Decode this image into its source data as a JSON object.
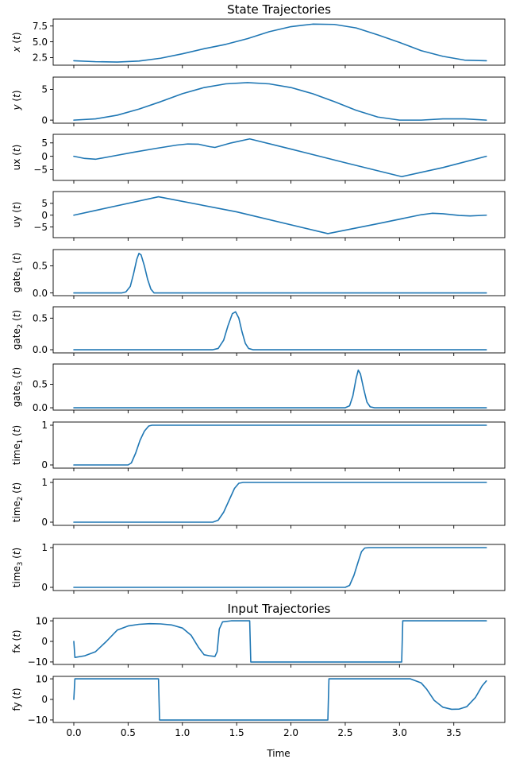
{
  "chart_data": {
    "type": "line",
    "line_color": "#1f77b4",
    "grid": false,
    "xlabel": "Time",
    "xlim": [
      -0.19,
      3.97
    ],
    "xticks": [
      0.0,
      0.5,
      1.0,
      1.5,
      2.0,
      2.5,
      3.0,
      3.5
    ],
    "xtick_labels": [
      "0.0",
      "0.5",
      "1.0",
      "1.5",
      "2.0",
      "2.5",
      "3.0",
      "3.5"
    ],
    "panels": [
      {
        "key": "x",
        "title": "State Trajectories",
        "ylabel_main": "x",
        "ylabel_sub": "",
        "ylabel_suffix": "(t)",
        "ylabel_italic": true,
        "ylim": [
          1.3,
          8.6
        ],
        "yticks": [
          2.5,
          5.0,
          7.5
        ],
        "ytick_labels": [
          "2.5",
          "5.0",
          "7.5"
        ],
        "points": [
          [
            0.0,
            2.0
          ],
          [
            0.2,
            1.85
          ],
          [
            0.4,
            1.8
          ],
          [
            0.6,
            1.95
          ],
          [
            0.8,
            2.4
          ],
          [
            1.0,
            3.1
          ],
          [
            1.2,
            3.9
          ],
          [
            1.4,
            4.6
          ],
          [
            1.6,
            5.5
          ],
          [
            1.8,
            6.6
          ],
          [
            2.0,
            7.4
          ],
          [
            2.2,
            7.8
          ],
          [
            2.4,
            7.75
          ],
          [
            2.6,
            7.2
          ],
          [
            2.8,
            6.1
          ],
          [
            3.0,
            4.9
          ],
          [
            3.2,
            3.6
          ],
          [
            3.4,
            2.7
          ],
          [
            3.6,
            2.1
          ],
          [
            3.8,
            2.0
          ]
        ]
      },
      {
        "key": "y",
        "title": "",
        "ylabel_main": "y",
        "ylabel_sub": "",
        "ylabel_suffix": "(t)",
        "ylabel_italic": true,
        "ylim": [
          -0.5,
          7.0
        ],
        "yticks": [
          0,
          5
        ],
        "ytick_labels": [
          "0",
          "5"
        ],
        "points": [
          [
            0.0,
            0.0
          ],
          [
            0.2,
            0.2
          ],
          [
            0.4,
            0.8
          ],
          [
            0.6,
            1.8
          ],
          [
            0.8,
            3.0
          ],
          [
            1.0,
            4.3
          ],
          [
            1.2,
            5.3
          ],
          [
            1.4,
            5.9
          ],
          [
            1.6,
            6.1
          ],
          [
            1.8,
            5.9
          ],
          [
            2.0,
            5.3
          ],
          [
            2.2,
            4.3
          ],
          [
            2.4,
            3.0
          ],
          [
            2.6,
            1.6
          ],
          [
            2.8,
            0.5
          ],
          [
            3.0,
            0.0
          ],
          [
            3.2,
            0.0
          ],
          [
            3.4,
            0.2
          ],
          [
            3.6,
            0.2
          ],
          [
            3.8,
            0.0
          ]
        ]
      },
      {
        "key": "ux",
        "title": "",
        "ylabel_main": "ux",
        "ylabel_sub": "",
        "ylabel_suffix": "(t)",
        "ylabel_italic": false,
        "ylim": [
          -9.0,
          8.2
        ],
        "yticks": [
          -5,
          0,
          5
        ],
        "ytick_labels": [
          "−5",
          "0",
          "5"
        ],
        "points": [
          [
            0.0,
            0.0
          ],
          [
            0.1,
            -0.8
          ],
          [
            0.2,
            -1.1
          ],
          [
            0.35,
            0.0
          ],
          [
            0.55,
            1.5
          ],
          [
            0.75,
            2.9
          ],
          [
            0.95,
            4.2
          ],
          [
            1.05,
            4.6
          ],
          [
            1.15,
            4.5
          ],
          [
            1.25,
            3.6
          ],
          [
            1.3,
            3.3
          ],
          [
            1.45,
            5.0
          ],
          [
            1.62,
            6.5
          ],
          [
            2.0,
            2.7
          ],
          [
            2.5,
            -2.4
          ],
          [
            3.02,
            -7.6
          ],
          [
            3.4,
            -4.2
          ],
          [
            3.8,
            0.0
          ]
        ]
      },
      {
        "key": "uy",
        "title": "",
        "ylabel_main": "uy",
        "ylabel_sub": "",
        "ylabel_suffix": "(t)",
        "ylabel_italic": false,
        "ylim": [
          -9.5,
          10.0
        ],
        "yticks": [
          -5,
          0,
          5
        ],
        "ytick_labels": [
          "−5",
          "0",
          "5"
        ],
        "points": [
          [
            0.0,
            0.0
          ],
          [
            0.78,
            7.8
          ],
          [
            1.5,
            1.4
          ],
          [
            2.34,
            -7.8
          ],
          [
            2.8,
            -3.6
          ],
          [
            3.2,
            0.2
          ],
          [
            3.3,
            0.8
          ],
          [
            3.4,
            0.6
          ],
          [
            3.55,
            -0.1
          ],
          [
            3.65,
            -0.3
          ],
          [
            3.8,
            0.0
          ]
        ]
      },
      {
        "key": "gate1",
        "title": "",
        "ylabel_main": "gate",
        "ylabel_sub": "1",
        "ylabel_suffix": "(t)",
        "ylabel_italic": false,
        "ylim": [
          -0.05,
          0.8
        ],
        "yticks": [
          0.0,
          0.5
        ],
        "ytick_labels": [
          "0.0",
          "0.5"
        ],
        "points": [
          [
            0.0,
            0.0
          ],
          [
            0.44,
            0.0
          ],
          [
            0.48,
            0.02
          ],
          [
            0.52,
            0.12
          ],
          [
            0.55,
            0.35
          ],
          [
            0.58,
            0.62
          ],
          [
            0.6,
            0.73
          ],
          [
            0.62,
            0.7
          ],
          [
            0.65,
            0.5
          ],
          [
            0.68,
            0.25
          ],
          [
            0.71,
            0.07
          ],
          [
            0.74,
            0.0
          ],
          [
            3.8,
            0.0
          ]
        ]
      },
      {
        "key": "gate2",
        "title": "",
        "ylabel_main": "gate",
        "ylabel_sub": "2",
        "ylabel_suffix": "(t)",
        "ylabel_italic": false,
        "ylim": [
          -0.05,
          0.68
        ],
        "yticks": [
          0.0,
          0.5
        ],
        "ytick_labels": [
          "0.0",
          "0.5"
        ],
        "points": [
          [
            0.0,
            0.0
          ],
          [
            1.28,
            0.0
          ],
          [
            1.33,
            0.02
          ],
          [
            1.38,
            0.15
          ],
          [
            1.42,
            0.38
          ],
          [
            1.46,
            0.57
          ],
          [
            1.49,
            0.6
          ],
          [
            1.52,
            0.5
          ],
          [
            1.55,
            0.28
          ],
          [
            1.58,
            0.1
          ],
          [
            1.61,
            0.02
          ],
          [
            1.65,
            0.0
          ],
          [
            3.8,
            0.0
          ]
        ]
      },
      {
        "key": "gate3",
        "title": "",
        "ylabel_main": "gate",
        "ylabel_sub": "3",
        "ylabel_suffix": "(t)",
        "ylabel_italic": false,
        "ylim": [
          -0.05,
          0.93
        ],
        "yticks": [
          0.0,
          0.5
        ],
        "ytick_labels": [
          "0.0",
          "0.5"
        ],
        "points": [
          [
            0.0,
            0.0
          ],
          [
            2.5,
            0.0
          ],
          [
            2.54,
            0.04
          ],
          [
            2.57,
            0.25
          ],
          [
            2.6,
            0.62
          ],
          [
            2.62,
            0.8
          ],
          [
            2.64,
            0.72
          ],
          [
            2.67,
            0.4
          ],
          [
            2.7,
            0.12
          ],
          [
            2.73,
            0.02
          ],
          [
            2.77,
            0.0
          ],
          [
            3.8,
            0.0
          ]
        ]
      },
      {
        "key": "time1",
        "title": "",
        "ylabel_main": "time",
        "ylabel_sub": "1",
        "ylabel_suffix": "(t)",
        "ylabel_italic": false,
        "ylim": [
          -0.08,
          1.08
        ],
        "yticks": [
          0,
          1
        ],
        "ytick_labels": [
          "0",
          "1"
        ],
        "points": [
          [
            0.0,
            0.0
          ],
          [
            0.5,
            0.0
          ],
          [
            0.53,
            0.05
          ],
          [
            0.57,
            0.3
          ],
          [
            0.61,
            0.62
          ],
          [
            0.65,
            0.85
          ],
          [
            0.69,
            0.98
          ],
          [
            0.72,
            1.0
          ],
          [
            3.8,
            1.0
          ]
        ]
      },
      {
        "key": "time2",
        "title": "",
        "ylabel_main": "time",
        "ylabel_sub": "2",
        "ylabel_suffix": "(t)",
        "ylabel_italic": false,
        "ylim": [
          -0.08,
          1.08
        ],
        "yticks": [
          0,
          1
        ],
        "ytick_labels": [
          "0",
          "1"
        ],
        "points": [
          [
            0.0,
            0.0
          ],
          [
            1.28,
            0.0
          ],
          [
            1.33,
            0.05
          ],
          [
            1.38,
            0.25
          ],
          [
            1.43,
            0.55
          ],
          [
            1.48,
            0.85
          ],
          [
            1.52,
            0.98
          ],
          [
            1.56,
            1.0
          ],
          [
            3.8,
            1.0
          ]
        ]
      },
      {
        "key": "time3",
        "title": "",
        "ylabel_main": "time",
        "ylabel_sub": "3",
        "ylabel_suffix": "(t)",
        "ylabel_italic": false,
        "ylim": [
          -0.08,
          1.08
        ],
        "yticks": [
          0,
          1
        ],
        "ytick_labels": [
          "0",
          "1"
        ],
        "points": [
          [
            0.0,
            0.0
          ],
          [
            2.5,
            0.0
          ],
          [
            2.54,
            0.05
          ],
          [
            2.58,
            0.3
          ],
          [
            2.62,
            0.65
          ],
          [
            2.65,
            0.9
          ],
          [
            2.68,
            0.99
          ],
          [
            2.72,
            1.0
          ],
          [
            3.8,
            1.0
          ]
        ]
      },
      {
        "key": "fx",
        "title": "Input Trajectories",
        "ylabel_main": "fx",
        "ylabel_sub": "",
        "ylabel_suffix": "(t)",
        "ylabel_italic": false,
        "ylim": [
          -11.2,
          11.2
        ],
        "yticks": [
          -10,
          0,
          10
        ],
        "ytick_labels": [
          "−10",
          "0",
          "10"
        ],
        "points": [
          [
            0.0,
            0.0
          ],
          [
            0.01,
            -7.8
          ],
          [
            0.1,
            -7.0
          ],
          [
            0.2,
            -5.0
          ],
          [
            0.3,
            0.0
          ],
          [
            0.4,
            5.5
          ],
          [
            0.5,
            7.5
          ],
          [
            0.6,
            8.3
          ],
          [
            0.7,
            8.6
          ],
          [
            0.8,
            8.5
          ],
          [
            0.9,
            8.0
          ],
          [
            1.0,
            6.5
          ],
          [
            1.08,
            3.0
          ],
          [
            1.15,
            -3.0
          ],
          [
            1.2,
            -6.5
          ],
          [
            1.25,
            -7.0
          ],
          [
            1.3,
            -7.3
          ],
          [
            1.32,
            -5.0
          ],
          [
            1.34,
            6.0
          ],
          [
            1.37,
            9.5
          ],
          [
            1.45,
            10.0
          ],
          [
            1.62,
            10.0
          ],
          [
            1.63,
            -10.0
          ],
          [
            3.02,
            -10.0
          ],
          [
            3.03,
            10.0
          ],
          [
            3.8,
            10.0
          ]
        ]
      },
      {
        "key": "fy",
        "title": "",
        "ylabel_main": "fy",
        "ylabel_sub": "",
        "ylabel_suffix": "(t)",
        "ylabel_italic": false,
        "ylim": [
          -11.2,
          11.2
        ],
        "yticks": [
          -10,
          0,
          10
        ],
        "ytick_labels": [
          "−10",
          "0",
          "10"
        ],
        "points": [
          [
            0.0,
            0.0
          ],
          [
            0.01,
            10.0
          ],
          [
            0.78,
            10.0
          ],
          [
            0.79,
            -10.0
          ],
          [
            2.34,
            -10.0
          ],
          [
            2.35,
            10.0
          ],
          [
            3.1,
            10.0
          ],
          [
            3.2,
            8.0
          ],
          [
            3.25,
            5.0
          ],
          [
            3.32,
            -0.5
          ],
          [
            3.4,
            -3.8
          ],
          [
            3.48,
            -4.8
          ],
          [
            3.55,
            -4.7
          ],
          [
            3.62,
            -3.5
          ],
          [
            3.7,
            1.0
          ],
          [
            3.76,
            6.5
          ],
          [
            3.8,
            9.0
          ]
        ]
      }
    ]
  }
}
